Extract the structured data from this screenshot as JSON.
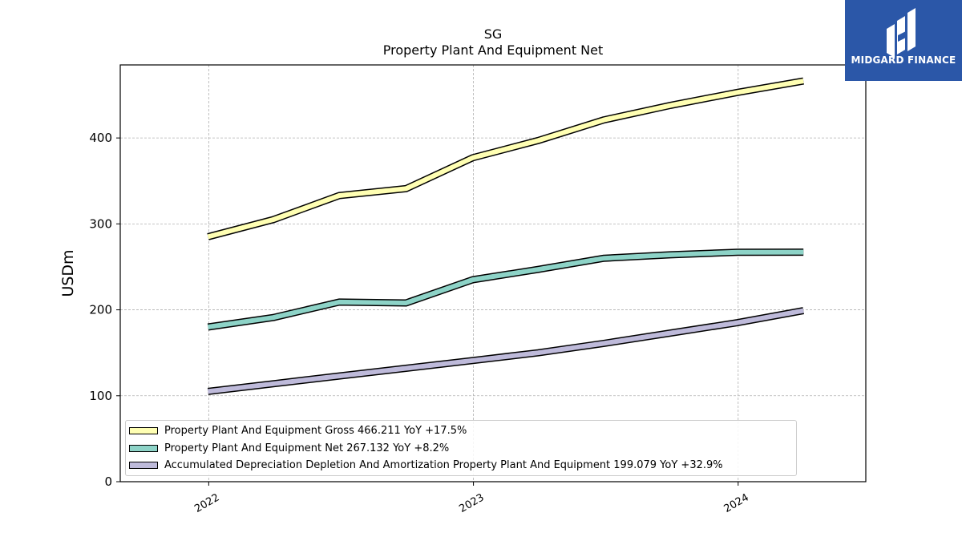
{
  "brand": {
    "name": "MIDGARD FINANCE",
    "bg_color": "#2b57a8"
  },
  "chart_data": {
    "type": "line",
    "title": "SG",
    "subtitle": "Property Plant And Equipment Net",
    "xlabel": "",
    "ylabel": "USDm",
    "x": [
      "2021-12-31",
      "2022-03-31",
      "2022-06-30",
      "2022-09-30",
      "2022-12-31",
      "2023-03-31",
      "2023-06-30",
      "2023-09-30",
      "2023-12-31",
      "2024-03-31"
    ],
    "x_ticks": [
      "2022",
      "2023",
      "2024"
    ],
    "ylim": [
      0,
      485
    ],
    "y_ticks": [
      0,
      100,
      200,
      300,
      400
    ],
    "grid": true,
    "legend_position": "bottom-left",
    "series": [
      {
        "name": "Property Plant And Equipment Gross",
        "legend_label": "Property Plant And Equipment Gross  466.211 YoY +17.5%",
        "color": "#ffffb3",
        "values": [
          285,
          305,
          333,
          341,
          377,
          397,
          421,
          438,
          453,
          466.211
        ]
      },
      {
        "name": "Property Plant And Equipment Net",
        "legend_label": "Property Plant And Equipment Net  267.132 YoY +8.2%",
        "color": "#8dd3c7",
        "values": [
          180,
          191,
          209,
          208,
          235,
          247,
          260,
          264,
          267,
          267.132
        ]
      },
      {
        "name": "Accumulated Depreciation Depletion And Amortization Property Plant And Equipment",
        "legend_label": "Accumulated Depreciation Depletion And Amortization Property Plant And Equipment  199.079 YoY +32.9%",
        "color": "#bebada",
        "values": [
          105,
          114,
          123,
          132,
          141,
          150,
          161,
          173,
          185,
          199.079
        ]
      }
    ]
  }
}
